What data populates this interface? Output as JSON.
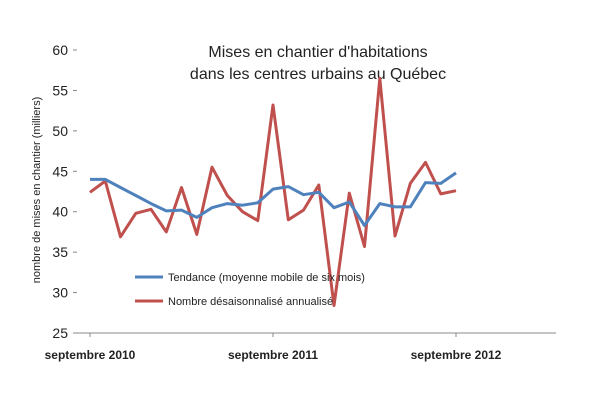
{
  "chart_data": {
    "type": "line",
    "title_lines": [
      "Mises en chantier d'habitations",
      "dans les centres urbains au Québec"
    ],
    "ylabel": "nombre de mises en chantier (milliers)",
    "ylim": [
      25,
      60
    ],
    "yticks": [
      25,
      30,
      35,
      40,
      45,
      50,
      55,
      60
    ],
    "x_tick_labels": [
      {
        "index": 0,
        "label": "septembre 2010"
      },
      {
        "index": 12,
        "label": "septembre 2011"
      },
      {
        "index": 24,
        "label": "septembre 2012"
      }
    ],
    "legend_position": "bottom-left",
    "grid": false,
    "series": [
      {
        "name": "Tendance (moyenne mobile de six mois)",
        "color": "#4F81BD",
        "values": [
          44.0,
          44.0,
          43.0,
          42.0,
          41.0,
          40.1,
          40.2,
          39.3,
          40.5,
          41.0,
          40.8,
          41.1,
          42.8,
          43.1,
          42.1,
          42.4,
          40.5,
          41.2,
          38.3,
          41.0,
          40.6,
          40.6,
          43.6,
          43.5,
          44.8
        ]
      },
      {
        "name": "Nombre désaisonnalisé annualisé",
        "color": "#C0504D",
        "values": [
          42.4,
          43.8,
          36.9,
          39.8,
          40.3,
          37.5,
          43.0,
          37.2,
          45.5,
          42.0,
          40.0,
          38.9,
          53.2,
          39.0,
          40.2,
          43.3,
          28.4,
          42.3,
          35.7,
          56.5,
          37.0,
          43.5,
          46.1,
          42.2,
          42.6
        ]
      }
    ]
  }
}
